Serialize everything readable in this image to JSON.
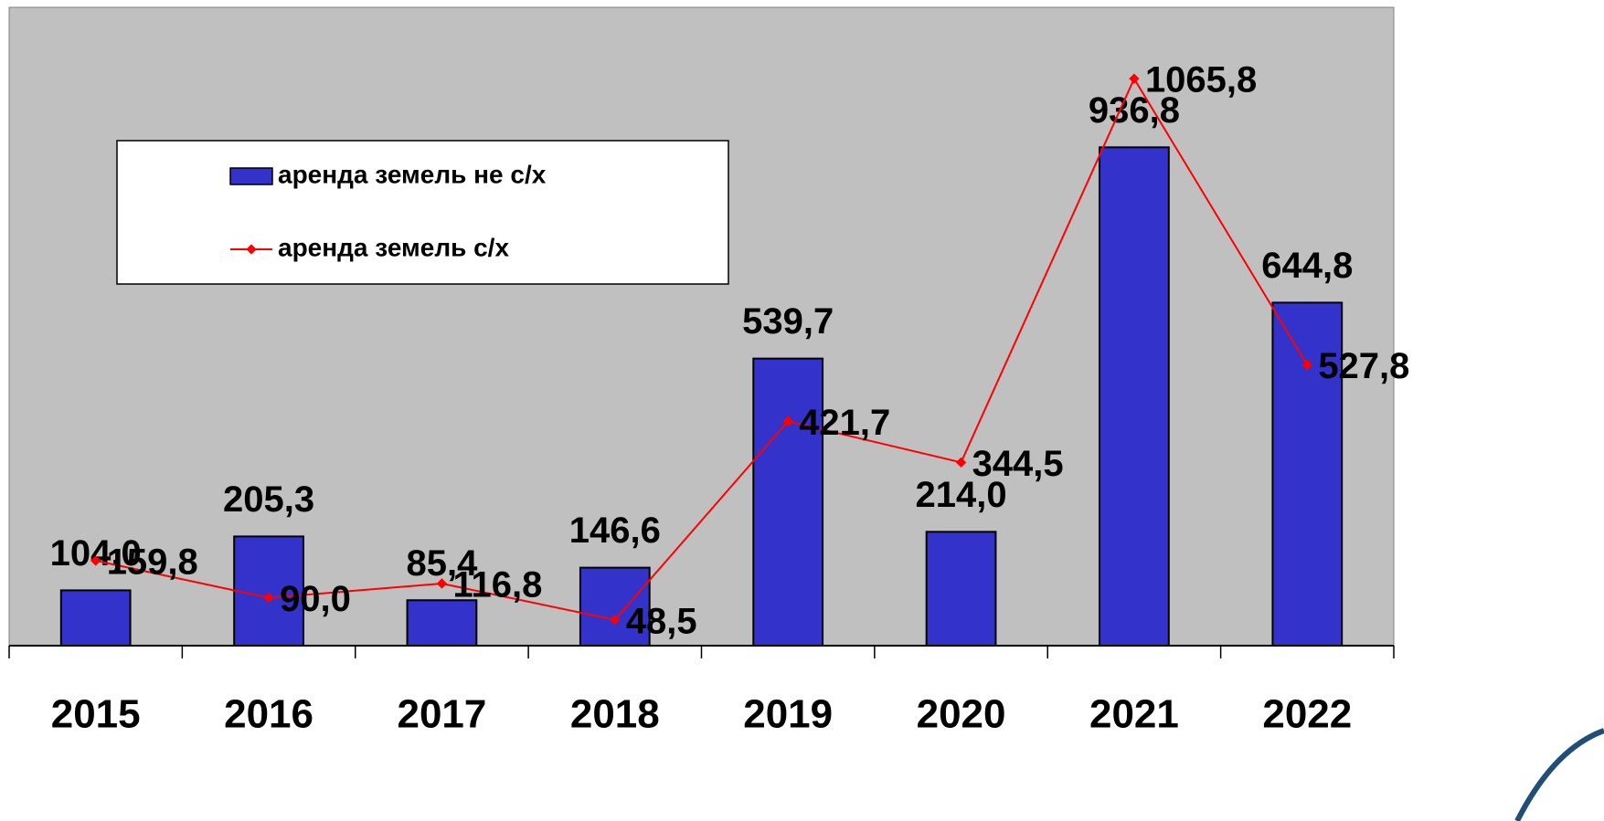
{
  "chart_data": {
    "type": "bar",
    "categories": [
      "2015",
      "2016",
      "2017",
      "2018",
      "2019",
      "2020",
      "2021",
      "2022"
    ],
    "series": [
      {
        "name": "аренда земель не с/х",
        "type": "bar",
        "color": "#3333cc",
        "values": [
          104.0,
          205.3,
          85.4,
          146.6,
          539.7,
          214.0,
          936.8,
          644.8
        ],
        "value_labels": [
          "104,0",
          "205,3",
          "85,4",
          "146,6",
          "539,7",
          "214,0",
          "936,8",
          "644,8"
        ]
      },
      {
        "name": "аренда земель с/х",
        "type": "line",
        "color": "#ff0000",
        "values": [
          159.8,
          90.0,
          116.8,
          48.5,
          421.7,
          344.5,
          1065.8,
          527.8
        ],
        "value_labels": [
          "159,8",
          "90,0",
          "116,8",
          "48,5",
          "421,7",
          "344,5",
          "1065,8",
          "527,8"
        ]
      }
    ],
    "ylim": [
      0,
      1200
    ],
    "legend": "upper left"
  }
}
